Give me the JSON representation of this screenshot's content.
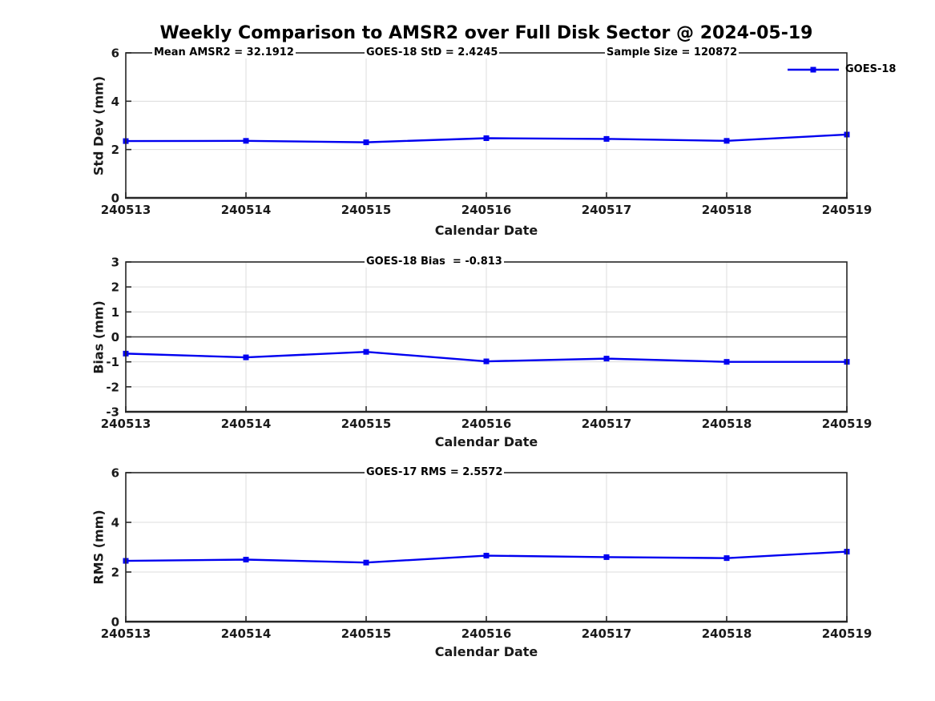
{
  "title": "Weekly Comparison to AMSR2 over Full Disk Sector @ 2024-05-19",
  "legend": {
    "label": "GOES-18"
  },
  "colors": {
    "line": "#0000f0",
    "grid": "#dcdcdc",
    "axis": "#262626",
    "zero_line": "#404040",
    "text": "#000000"
  },
  "chart_data": [
    {
      "type": "line",
      "title": "",
      "ylabel": "Std Dev (mm)",
      "xlabel": "Calendar Date",
      "annotations": [
        "Mean AMSR2 = 32.1912",
        "GOES-18 StD = 2.4245",
        "Sample Size = 120872"
      ],
      "categories": [
        "240513",
        "240514",
        "240515",
        "240516",
        "240517",
        "240518",
        "240519"
      ],
      "series": [
        {
          "name": "GOES-18",
          "values": [
            2.35,
            2.36,
            2.3,
            2.47,
            2.44,
            2.36,
            2.62
          ]
        }
      ],
      "ylim": [
        0,
        6
      ],
      "yticks": [
        0,
        2,
        4,
        6
      ],
      "grid": true,
      "zero_line": false,
      "legend_position": "top-right"
    },
    {
      "type": "line",
      "title": "",
      "ylabel": "Bias (mm)",
      "xlabel": "Calendar Date",
      "annotations": [
        "GOES-18 Bias  = -0.813"
      ],
      "categories": [
        "240513",
        "240514",
        "240515",
        "240516",
        "240517",
        "240518",
        "240519"
      ],
      "series": [
        {
          "name": "GOES-18",
          "values": [
            -0.67,
            -0.82,
            -0.6,
            -0.98,
            -0.87,
            -1.0,
            -1.0
          ]
        }
      ],
      "ylim": [
        -3,
        3
      ],
      "yticks": [
        -3,
        -2,
        -1,
        0,
        1,
        2,
        3
      ],
      "grid": true,
      "zero_line": true,
      "legend_position": "none"
    },
    {
      "type": "line",
      "title": "",
      "ylabel": "RMS (mm)",
      "xlabel": "Calendar Date",
      "annotations": [
        "GOES-17 RMS = 2.5572"
      ],
      "categories": [
        "240513",
        "240514",
        "240515",
        "240516",
        "240517",
        "240518",
        "240519"
      ],
      "series": [
        {
          "name": "GOES-18",
          "values": [
            2.45,
            2.5,
            2.38,
            2.66,
            2.6,
            2.56,
            2.82
          ]
        }
      ],
      "ylim": [
        0,
        6
      ],
      "yticks": [
        0,
        2,
        4,
        6
      ],
      "grid": true,
      "zero_line": false,
      "legend_position": "none"
    }
  ]
}
